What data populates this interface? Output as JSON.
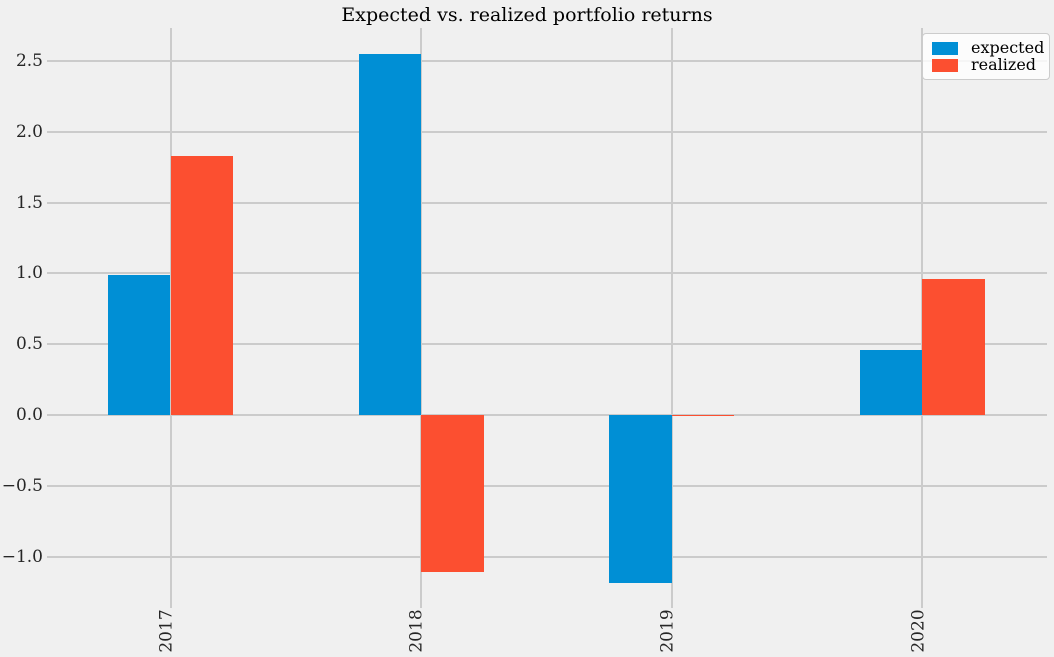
{
  "title": "Expected vs. realized portfolio returns",
  "chart_data": {
    "type": "bar",
    "title": "Expected vs. realized portfolio returns",
    "categories": [
      "2017",
      "2018",
      "2019",
      "2020"
    ],
    "series": [
      {
        "name": "expected",
        "color": "#008fd5",
        "values": [
          0.99,
          2.55,
          -1.19,
          0.46
        ]
      },
      {
        "name": "realized",
        "color": "#fc4f30",
        "values": [
          1.83,
          -1.11,
          -0.01,
          0.96
        ]
      }
    ],
    "yticks": [
      -1.0,
      -0.5,
      0.0,
      0.5,
      1.0,
      1.5,
      2.0,
      2.5
    ],
    "ylim": [
      -1.32,
      2.73
    ],
    "xlabel": "",
    "ylabel": "",
    "grid": true,
    "legend_position": "upper right",
    "background_color": "#f0f0f0",
    "gridline_color": "#cbcbcb",
    "text_color": "#262626"
  }
}
